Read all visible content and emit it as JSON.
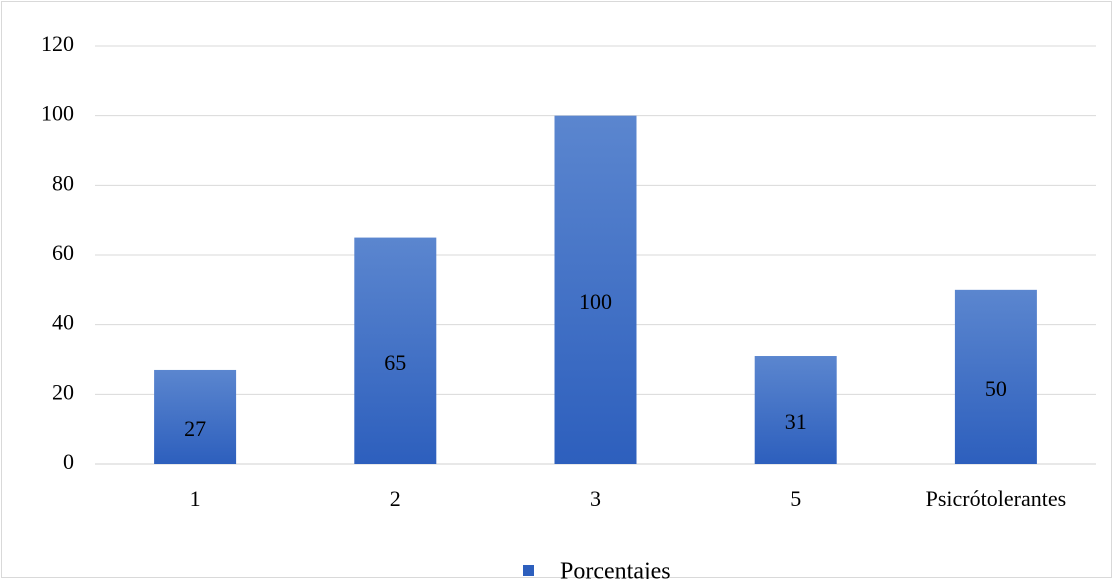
{
  "chart_data": {
    "type": "bar",
    "title": "",
    "xlabel": "",
    "ylabel": "",
    "categories": [
      "1",
      "2",
      "3",
      "5",
      "Psicrótolerantes"
    ],
    "series": [
      {
        "name": "Porcentajes",
        "values": [
          27,
          65,
          100,
          31,
          50
        ],
        "data_labels": [
          "27",
          "65",
          "100",
          "31",
          "50"
        ],
        "color_top": "#5b86cf",
        "color_bottom": "#2d5fbd"
      }
    ],
    "ylim": [
      0,
      120
    ],
    "yticks": [
      0,
      20,
      40,
      60,
      80,
      100,
      120
    ],
    "grid": true,
    "legend_position": "bottom"
  }
}
